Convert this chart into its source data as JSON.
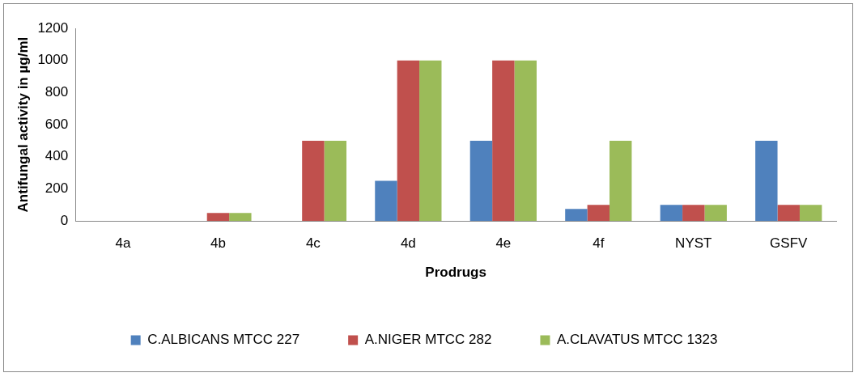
{
  "chart_data": {
    "type": "bar",
    "xlabel": "Prodrugs",
    "ylabel": "Antifungal activity in µg/ml",
    "categories": [
      "4a",
      "4b",
      "4c",
      "4d",
      "4e",
      "4f",
      "NYST",
      "GSFV"
    ],
    "series": [
      {
        "name": "C.ALBICANS MTCC 227",
        "color": "#4f81bd",
        "values": [
          0,
          0,
          0,
          250,
          500,
          75,
          100,
          500
        ]
      },
      {
        "name": "A.NIGER MTCC 282",
        "color": "#c0504d",
        "values": [
          0,
          50,
          500,
          1000,
          1000,
          100,
          100,
          100
        ]
      },
      {
        "name": "A.CLAVATUS MTCC 1323",
        "color": "#9bbb59",
        "values": [
          0,
          50,
          500,
          1000,
          1000,
          500,
          100,
          100
        ]
      }
    ],
    "ylim": [
      0,
      1200
    ],
    "yticks": [
      0,
      200,
      400,
      600,
      800,
      1000,
      1200
    ],
    "grid": false,
    "legend": "bottom"
  }
}
